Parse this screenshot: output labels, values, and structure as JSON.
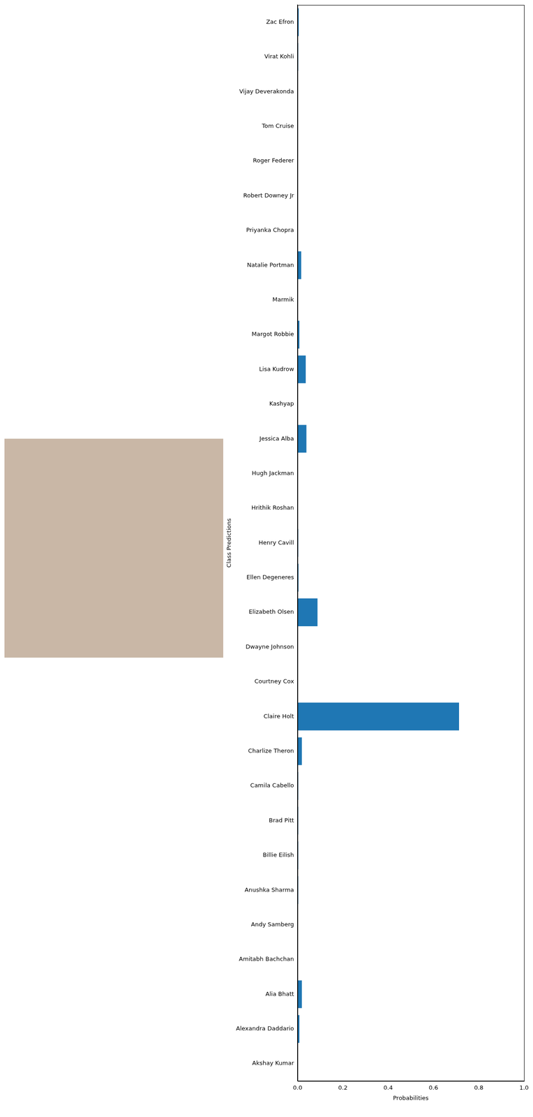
{
  "chart_data": {
    "type": "bar",
    "orientation": "horizontal",
    "x_label": "Probabilities",
    "y_label": "Class Predictions",
    "categories": [
      "Zac Efron",
      "Virat Kohli",
      "Vijay Deverakonda",
      "Tom Cruise",
      "Roger Federer",
      "Robert Downey Jr",
      "Priyanka Chopra",
      "Natalie Portman",
      "Marmik",
      "Margot Robbie",
      "Lisa Kudrow",
      "Kashyap",
      "Jessica Alba",
      "Hugh Jackman",
      "Hrithik Roshan",
      "Henry Cavill",
      "Ellen Degeneres",
      "Elizabeth Olsen",
      "Dwayne Johnson",
      "Courtney Cox",
      "Claire Holt",
      "Charlize Theron",
      "Camila Cabello",
      "Brad Pitt",
      "Billie Eilish",
      "Anushka Sharma",
      "Andy Samberg",
      "Amitabh Bachchan",
      "Alia Bhatt",
      "Alexandra Daddario",
      "Akshay Kumar"
    ],
    "values": [
      0.005,
      0.003,
      0,
      0,
      0,
      0,
      0,
      0.016,
      0,
      0.008,
      0.036,
      0,
      0.039,
      0,
      0,
      0.003,
      0.004,
      0.088,
      0,
      0.001,
      0.713,
      0.019,
      0.003,
      0.003,
      0.003,
      0.003,
      0.001,
      0,
      0.019,
      0.008,
      0
    ],
    "color": "#1f77b4",
    "xlim": [
      0,
      1
    ],
    "xticks": [
      {
        "value": 0,
        "label": "0.0"
      },
      0.2,
      0.4,
      0.6,
      0.8,
      {
        "value": 1,
        "label": "1.0"
      }
    ],
    "grid": false
  }
}
